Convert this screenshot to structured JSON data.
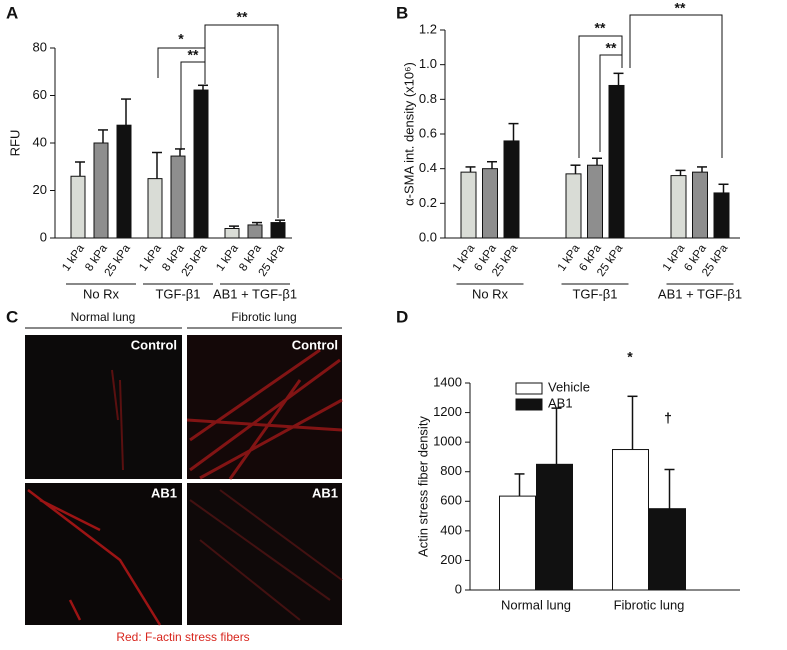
{
  "chart_data": [
    {
      "type": "bar",
      "panel": "A",
      "ylabel": "RFU",
      "categories": [
        "No Rx",
        "TGF-β1",
        "AB1 + TGF-β1"
      ],
      "series": [
        {
          "name": "1 kPa",
          "color": "#d9dcd6",
          "values": [
            26,
            25,
            4
          ],
          "errors": [
            6,
            11,
            1
          ]
        },
        {
          "name": "8 kPa",
          "color": "#8e8e8e",
          "values": [
            40,
            34.5,
            5.5
          ],
          "errors": [
            5.5,
            3,
            1
          ]
        },
        {
          "name": "25 kPa",
          "color": "#111111",
          "values": [
            47.5,
            62.3,
            6.5
          ],
          "errors": [
            11,
            2,
            1
          ]
        }
      ],
      "ylim": [
        0,
        80
      ],
      "yticks": [
        0,
        20,
        40,
        60,
        80
      ],
      "annotations": [
        "*",
        "**",
        "**"
      ]
    },
    {
      "type": "bar",
      "panel": "B",
      "ylabel": "α-SMA int. density (x10⁶)",
      "categories": [
        "No Rx",
        "TGF-β1",
        "AB1 + TGF-β1"
      ],
      "series": [
        {
          "name": "1 kPa",
          "color": "#d9dcd6",
          "values": [
            0.38,
            0.37,
            0.36
          ],
          "errors": [
            0.03,
            0.05,
            0.03
          ]
        },
        {
          "name": "6 kPa",
          "color": "#8e8e8e",
          "values": [
            0.4,
            0.42,
            0.38
          ],
          "errors": [
            0.04,
            0.04,
            0.03
          ]
        },
        {
          "name": "25 kPa",
          "color": "#111111",
          "values": [
            0.56,
            0.88,
            0.26
          ],
          "errors": [
            0.1,
            0.07,
            0.05
          ]
        }
      ],
      "ylim": [
        0,
        1.2
      ],
      "yticks": [
        {
          "value": 0,
          "label": "0.0"
        },
        0.2,
        0.4,
        0.6,
        0.8,
        {
          "value": 1,
          "label": "1.0"
        },
        1.2
      ],
      "annotations": [
        "**",
        "**",
        "**"
      ]
    },
    {
      "type": "bar",
      "panel": "D",
      "ylabel": "Actin stress fiber density",
      "categories": [
        "Normal lung",
        "Fibrotic lung"
      ],
      "series": [
        {
          "name": "Vehicle",
          "color": "#ffffff",
          "values": [
            635,
            950
          ],
          "errors": [
            150,
            360
          ]
        },
        {
          "name": "AB1",
          "color": "#111111",
          "values": [
            850,
            550
          ],
          "errors": [
            380,
            265
          ]
        }
      ],
      "ylim": [
        0,
        1400
      ],
      "yticks": [
        0,
        200,
        400,
        600,
        800,
        1000,
        1200,
        1400
      ],
      "legend": "upper left",
      "annotations": [
        "*",
        "†"
      ]
    }
  ],
  "image_panel": {
    "panel": "C",
    "columns": [
      "Normal lung",
      "Fibrotic lung"
    ],
    "labels": [
      "Control",
      "Control",
      "AB1",
      "AB1"
    ],
    "caption": "Red: F-actin stress fibers"
  }
}
